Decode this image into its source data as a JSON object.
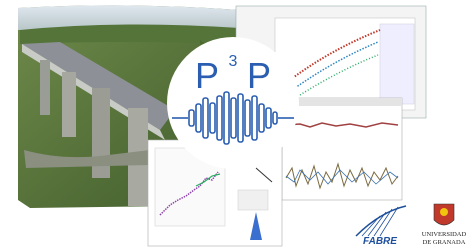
{
  "logo": {
    "letter1": "P",
    "superscript": "3",
    "letter2": "P"
  },
  "partners": {
    "fabre": "FABRE",
    "university": {
      "line1": "UNIVERSIDAD",
      "line2": "DE GRANADA"
    }
  }
}
